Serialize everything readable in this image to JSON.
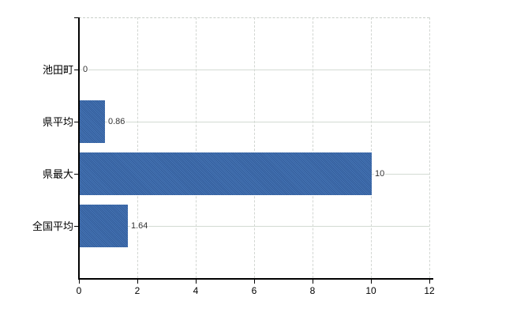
{
  "chart_data": {
    "type": "bar",
    "orientation": "horizontal",
    "title": "",
    "xlabel": "",
    "ylabel": "",
    "categories": [
      "池田町",
      "県平均",
      "県最大",
      "全国平均"
    ],
    "values": [
      0,
      0.86,
      10,
      1.64
    ],
    "value_labels": [
      "0",
      "0.86",
      "10",
      "1.64"
    ],
    "x_ticks": [
      0,
      2,
      4,
      6,
      8,
      10,
      12
    ],
    "x_tick_labels": [
      "0",
      "2",
      "4",
      "6",
      "8",
      "10",
      "12"
    ],
    "xlim": [
      0,
      12
    ],
    "legend": "none",
    "grid": {
      "vertical": "dashed-at-ticks",
      "horizontal": "solid-at-category-centers",
      "top_border": "dashed"
    },
    "colors": {
      "bar": "#3d69a8",
      "bar_dither_light": "#4575b5",
      "bar_dither_dark": "#345d9b",
      "grid_h": "#d3dbd3",
      "grid_v": "#d2d6d2",
      "top_border": "#c9cfc9",
      "axis": "#000000",
      "value_label": "#333333",
      "tick_label": "#000000",
      "background": "#ffffff"
    }
  }
}
